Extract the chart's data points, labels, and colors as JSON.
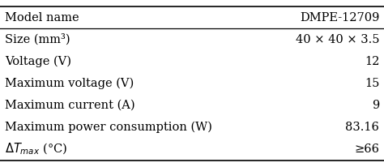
{
  "rows": [
    [
      "Model name",
      "DMPE-12709"
    ],
    [
      "Size (mm³)",
      "40 × 40 × 3.5"
    ],
    [
      "Voltage (V)",
      "12"
    ],
    [
      "Maximum voltage (V)",
      "15"
    ],
    [
      "Maximum current (A)",
      "9"
    ],
    [
      "Maximum power consumption (W)",
      "83.16"
    ],
    [
      "delta_Tmax",
      "≥66"
    ]
  ],
  "header_line_color": "#000000",
  "bg_color": "#ffffff",
  "text_color": "#000000",
  "font_size": 10.5,
  "fig_width": 4.74,
  "fig_height": 2.06,
  "dpi": 100
}
